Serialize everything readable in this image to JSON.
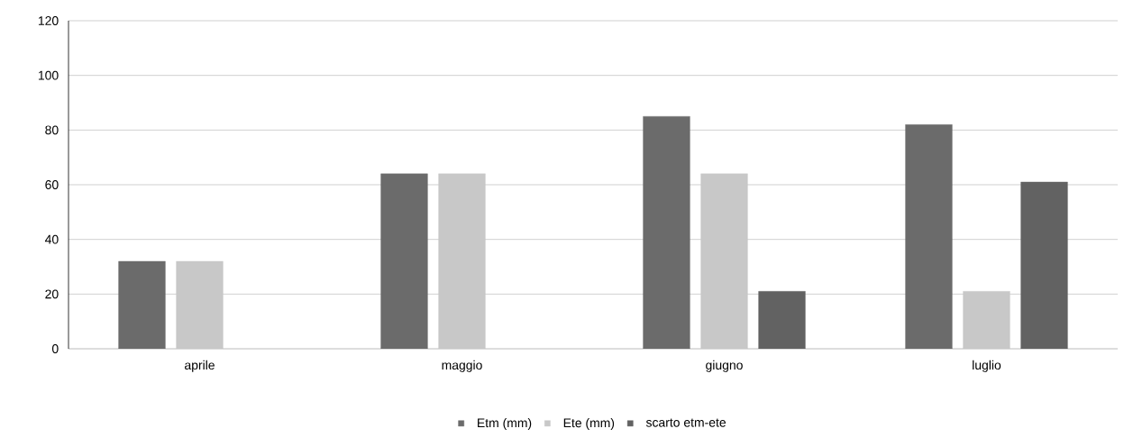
{
  "chart_data": {
    "type": "bar",
    "categories": [
      "aprile",
      "maggio",
      "giugno",
      "luglio"
    ],
    "series": [
      {
        "name": "Etm (mm)",
        "color": "#6b6b6b",
        "values": [
          32,
          64,
          85,
          82
        ]
      },
      {
        "name": "Ete (mm)",
        "color": "#c8c8c8",
        "values": [
          32,
          64,
          64,
          21
        ]
      },
      {
        "name": "scarto etm-ete",
        "color": "#626262",
        "values": [
          null,
          null,
          21,
          61
        ]
      }
    ],
    "ylim": [
      0,
      120
    ],
    "yticks": [
      0,
      20,
      40,
      60,
      80,
      100,
      120
    ],
    "grid": "y",
    "legend": "bottom"
  }
}
